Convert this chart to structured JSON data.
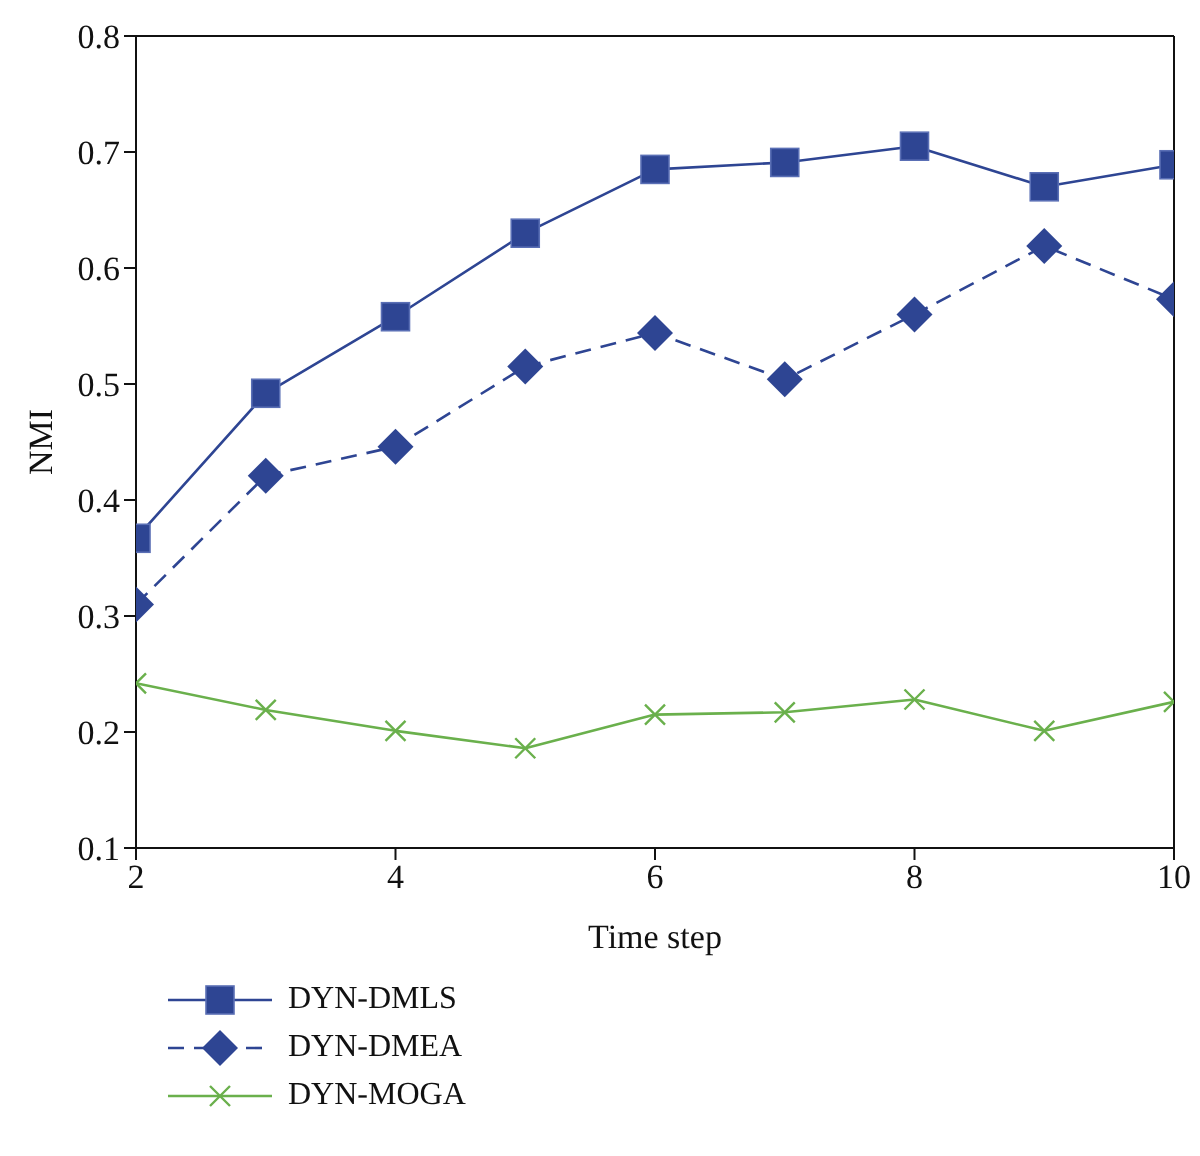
{
  "chart_data": {
    "type": "line",
    "xlabel": "Time step",
    "ylabel": "NMI",
    "x": [
      2,
      3,
      4,
      5,
      6,
      7,
      8,
      9,
      10
    ],
    "xlim": [
      2,
      10
    ],
    "xticks": [
      2,
      4,
      6,
      8,
      10
    ],
    "ylim": [
      0.1,
      0.8
    ],
    "yticks": [
      0.1,
      0.2,
      0.3,
      0.4,
      0.5,
      0.6,
      0.7,
      0.8
    ],
    "grid": false,
    "legend": "bottom left",
    "series": [
      {
        "name": "DYN-DMLS",
        "color": "#2e4593",
        "marker": "square",
        "line_style": "solid",
        "values": [
          0.367,
          0.492,
          0.558,
          0.63,
          0.685,
          0.691,
          0.705,
          0.67,
          0.689
        ]
      },
      {
        "name": "DYN-DMEA",
        "color": "#2e4593",
        "marker": "diamond",
        "line_style": "dashed",
        "values": [
          0.31,
          0.421,
          0.446,
          0.515,
          0.544,
          0.504,
          0.56,
          0.619,
          0.573
        ]
      },
      {
        "name": "DYN-MOGA",
        "color": "#6ab04c",
        "marker": "cross",
        "line_style": "solid",
        "values": [
          0.242,
          0.219,
          0.201,
          0.186,
          0.215,
          0.217,
          0.228,
          0.201,
          0.226
        ]
      }
    ]
  }
}
